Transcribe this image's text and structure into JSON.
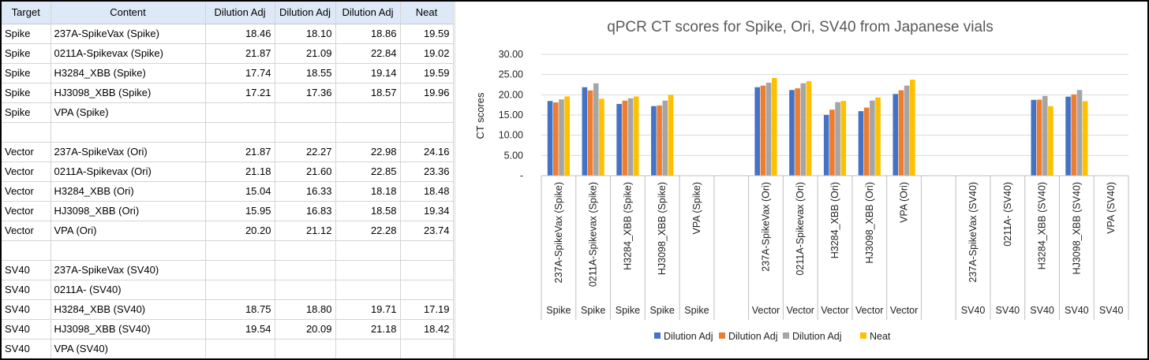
{
  "table": {
    "headers": [
      "Target",
      "Content",
      "Dilution Adj",
      "Dilution Adj",
      "Dilution Adj",
      "Neat"
    ],
    "rows": [
      [
        "Spike",
        "237A-SpikeVax (Spike)",
        "18.46",
        "18.10",
        "18.86",
        "19.59"
      ],
      [
        "Spike",
        "0211A-Spikevax (Spike)",
        "21.87",
        "21.09",
        "22.84",
        "19.02"
      ],
      [
        "Spike",
        "H3284_XBB (Spike)",
        "17.74",
        "18.55",
        "19.14",
        "19.59"
      ],
      [
        "Spike",
        "HJ3098_XBB (Spike)",
        "17.21",
        "17.36",
        "18.57",
        "19.96"
      ],
      [
        "Spike",
        "VPA (Spike)",
        "",
        "",
        "",
        ""
      ],
      [
        "",
        "",
        "",
        "",
        "",
        ""
      ],
      [
        "Vector",
        "237A-SpikeVax (Ori)",
        "21.87",
        "22.27",
        "22.98",
        "24.16"
      ],
      [
        "Vector",
        "0211A-Spikevax (Ori)",
        "21.18",
        "21.60",
        "22.85",
        "23.36"
      ],
      [
        "Vector",
        "H3284_XBB (Ori)",
        "15.04",
        "16.33",
        "18.18",
        "18.48"
      ],
      [
        "Vector",
        "HJ3098_XBB (Ori)",
        "15.95",
        "16.83",
        "18.58",
        "19.34"
      ],
      [
        "Vector",
        "VPA (Ori)",
        "20.20",
        "21.12",
        "22.28",
        "23.74"
      ],
      [
        "",
        "",
        "",
        "",
        "",
        ""
      ],
      [
        "SV40",
        "237A-SpikeVax (SV40)",
        "",
        "",
        "",
        ""
      ],
      [
        "SV40",
        "0211A- (SV40)",
        "",
        "",
        "",
        ""
      ],
      [
        "SV40",
        "H3284_XBB (SV40)",
        "18.75",
        "18.80",
        "19.71",
        "17.19"
      ],
      [
        "SV40",
        "HJ3098_XBB (SV40)",
        "19.54",
        "20.09",
        "21.18",
        "18.42"
      ],
      [
        "SV40",
        "VPA (SV40)",
        "",
        "",
        "",
        ""
      ]
    ]
  },
  "chart_data": {
    "type": "bar",
    "title": "qPCR CT scores for Spike, Ori, SV40 from Japanese vials",
    "xlabel": "",
    "ylabel": "CT scores",
    "ylim": [
      0,
      30
    ],
    "yticks": [
      "-",
      "5.00",
      "10.00",
      "15.00",
      "20.00",
      "25.00",
      "30.00"
    ],
    "grid": true,
    "legend": "bottom",
    "categories": [
      {
        "label": "237A-SpikeVax (Spike)",
        "group": "Spike"
      },
      {
        "label": "0211A-Spikevax (Spike)",
        "group": "Spike"
      },
      {
        "label": "H3284_XBB (Spike)",
        "group": "Spike"
      },
      {
        "label": "HJ3098_XBB (Spike)",
        "group": "Spike"
      },
      {
        "label": "VPA (Spike)",
        "group": "Spike"
      },
      {
        "label": "",
        "group": ""
      },
      {
        "label": "237A-SpikeVax (Ori)",
        "group": "Vector"
      },
      {
        "label": "0211A-Spikevax (Ori)",
        "group": "Vector"
      },
      {
        "label": "H3284_XBB (Ori)",
        "group": "Vector"
      },
      {
        "label": "HJ3098_XBB (Ori)",
        "group": "Vector"
      },
      {
        "label": "VPA (Ori)",
        "group": "Vector"
      },
      {
        "label": "",
        "group": ""
      },
      {
        "label": "237A-SpikeVax (SV40)",
        "group": "SV40"
      },
      {
        "label": "0211A- (SV40)",
        "group": "SV40"
      },
      {
        "label": "H3284_XBB (SV40)",
        "group": "SV40"
      },
      {
        "label": "HJ3098_XBB (SV40)",
        "group": "SV40"
      },
      {
        "label": "VPA (SV40)",
        "group": "SV40"
      }
    ],
    "series": [
      {
        "name": "Dilution Adj",
        "color": "#4472c4",
        "values": [
          18.46,
          21.87,
          17.74,
          17.21,
          null,
          null,
          21.87,
          21.18,
          15.04,
          15.95,
          20.2,
          null,
          null,
          null,
          18.75,
          19.54,
          null
        ]
      },
      {
        "name": "Dilution Adj",
        "color": "#ed7d31",
        "values": [
          18.1,
          21.09,
          18.55,
          17.36,
          null,
          null,
          22.27,
          21.6,
          16.33,
          16.83,
          21.12,
          null,
          null,
          null,
          18.8,
          20.09,
          null
        ]
      },
      {
        "name": "Dilution Adj",
        "color": "#a5a5a5",
        "values": [
          18.86,
          22.84,
          19.14,
          18.57,
          null,
          null,
          22.98,
          22.85,
          18.18,
          18.58,
          22.28,
          null,
          null,
          null,
          19.71,
          21.18,
          null
        ]
      },
      {
        "name": "Neat",
        "color": "#ffc000",
        "values": [
          19.59,
          19.02,
          19.59,
          19.96,
          null,
          null,
          24.16,
          23.36,
          18.48,
          19.34,
          23.74,
          null,
          null,
          null,
          17.19,
          18.42,
          null
        ]
      }
    ]
  }
}
